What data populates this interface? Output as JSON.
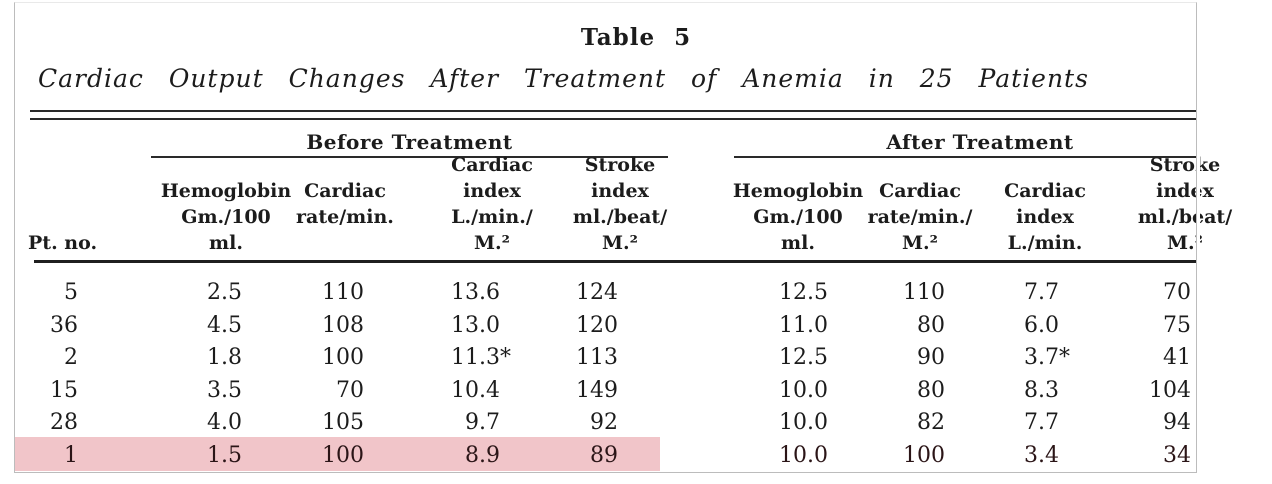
{
  "page": {
    "title": "Table 5",
    "caption": "Cardiac Output Changes After Treatment of Anemia in 25 Patients"
  },
  "table": {
    "stub_header": "Pt. no.",
    "groups": [
      {
        "title": "Before Treatment",
        "columns": [
          "Hemoglobin\nGm./100\nml.",
          "Cardiac\nrate/min.",
          "Cardiac\nindex\nL./min./\nM.²",
          "Stroke\nindex\nml./beat/\nM.²"
        ]
      },
      {
        "title": "After Treatment",
        "columns": [
          "Hemoglobin\nGm./100\nml.",
          "Cardiac\nrate/min./\nM.²",
          "Cardiac\nindex\nL./min.",
          "Stroke\nindex\nml./beat/\nM.²"
        ]
      }
    ],
    "rows": [
      {
        "pt": "5",
        "before": [
          "2.5",
          "110",
          "13.6",
          "124"
        ],
        "after": [
          "12.5",
          "110",
          "7.7",
          "70"
        ],
        "highlighted": false
      },
      {
        "pt": "36",
        "before": [
          "4.5",
          "108",
          "13.0",
          "120"
        ],
        "after": [
          "11.0",
          "80",
          "6.0",
          "75"
        ],
        "highlighted": false
      },
      {
        "pt": "2",
        "before": [
          "1.8",
          "100",
          "11.3*",
          "113"
        ],
        "after": [
          "12.5",
          "90",
          "3.7*",
          "41"
        ],
        "highlighted": false
      },
      {
        "pt": "15",
        "before": [
          "3.5",
          "70",
          "10.4",
          "149"
        ],
        "after": [
          "10.0",
          "80",
          "8.3",
          "104"
        ],
        "highlighted": false
      },
      {
        "pt": "28",
        "before": [
          "4.0",
          "105",
          "9.7",
          "92"
        ],
        "after": [
          "10.0",
          "82",
          "7.7",
          "94"
        ],
        "highlighted": false
      },
      {
        "pt": "1",
        "before": [
          "1.5",
          "100",
          "8.9",
          "89"
        ],
        "after": [
          "10.0",
          "100",
          "3.4",
          "34"
        ],
        "highlighted": true
      }
    ],
    "footnote_marker": "*",
    "highlight_color": "#f1c5c9"
  }
}
